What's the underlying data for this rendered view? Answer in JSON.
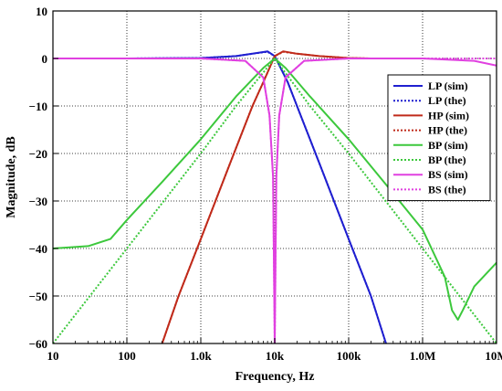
{
  "chart_data": {
    "type": "line",
    "xlabel": "Frequency, Hz",
    "ylabel": "Magnitude, dB",
    "x_scale": "log",
    "xlim": [
      10,
      10000000
    ],
    "ylim": [
      -60,
      10
    ],
    "x_ticks": [
      10,
      100,
      1000,
      10000,
      100000,
      1000000,
      10000000
    ],
    "x_tick_labels": [
      "10",
      "100",
      "1.0k",
      "10k",
      "100k",
      "1.0M",
      "10M"
    ],
    "y_ticks": [
      10,
      0,
      -10,
      -20,
      -30,
      -40,
      -50,
      -60
    ],
    "y_tick_labels": [
      "10",
      "0",
      "−10",
      "−20",
      "−30",
      "−40",
      "−50",
      "−60"
    ],
    "grid": true,
    "legend_position": "right",
    "series": [
      {
        "name": "LP (sim)",
        "color": "#1f1fd0",
        "style": "solid",
        "points": [
          [
            10,
            0
          ],
          [
            100,
            0
          ],
          [
            1000,
            0.1
          ],
          [
            3000,
            0.5
          ],
          [
            5000,
            1.0
          ],
          [
            8000,
            1.5
          ],
          [
            10000,
            0.5
          ],
          [
            15000,
            -5
          ],
          [
            20000,
            -10
          ],
          [
            40000,
            -22
          ],
          [
            100000,
            -38
          ],
          [
            200000,
            -50
          ],
          [
            320000,
            -60
          ]
        ]
      },
      {
        "name": "LP (the)",
        "color": "#1f1fd0",
        "style": "dotted",
        "points": [
          [
            10,
            0
          ],
          [
            100,
            0
          ],
          [
            1000,
            0.1
          ],
          [
            3000,
            0.5
          ],
          [
            5000,
            1.0
          ],
          [
            8000,
            1.4
          ],
          [
            10000,
            0.5
          ],
          [
            15000,
            -5
          ],
          [
            20000,
            -10
          ],
          [
            40000,
            -22
          ],
          [
            100000,
            -38
          ],
          [
            200000,
            -50
          ],
          [
            320000,
            -60
          ]
        ]
      },
      {
        "name": "HP (sim)",
        "color": "#c02a1a",
        "style": "solid",
        "points": [
          [
            300,
            -60
          ],
          [
            500,
            -50
          ],
          [
            1000,
            -38
          ],
          [
            2500,
            -22
          ],
          [
            5000,
            -10
          ],
          [
            7000,
            -5
          ],
          [
            10000,
            0.5
          ],
          [
            13000,
            1.5
          ],
          [
            20000,
            1.0
          ],
          [
            40000,
            0.5
          ],
          [
            100000,
            0.1
          ],
          [
            200000,
            0
          ]
        ]
      },
      {
        "name": "HP (the)",
        "color": "#c02a1a",
        "style": "dotted",
        "points": [
          [
            300,
            -60
          ],
          [
            500,
            -50
          ],
          [
            1000,
            -38
          ],
          [
            2500,
            -22
          ],
          [
            5000,
            -10
          ],
          [
            7000,
            -5
          ],
          [
            10000,
            0.5
          ],
          [
            13000,
            1.4
          ],
          [
            20000,
            1.0
          ],
          [
            40000,
            0.5
          ],
          [
            100000,
            0.1
          ],
          [
            200000,
            0
          ]
        ]
      },
      {
        "name": "BP (sim)",
        "color": "#3cc83c",
        "style": "solid",
        "points": [
          [
            10,
            -40
          ],
          [
            30,
            -39.5
          ],
          [
            60,
            -38
          ],
          [
            100,
            -34
          ],
          [
            300,
            -26
          ],
          [
            1000,
            -17
          ],
          [
            3000,
            -8
          ],
          [
            7000,
            -2
          ],
          [
            10000,
            0
          ],
          [
            14000,
            -2
          ],
          [
            30000,
            -8
          ],
          [
            100000,
            -17
          ],
          [
            300000,
            -26
          ],
          [
            1000000,
            -36
          ],
          [
            2000000,
            -46
          ],
          [
            2500000,
            -53
          ],
          [
            3000000,
            -55
          ],
          [
            3500000,
            -53
          ],
          [
            5000000,
            -48
          ],
          [
            10000000,
            -43
          ]
        ]
      },
      {
        "name": "BP (the)",
        "color": "#3cc83c",
        "style": "dotted",
        "points": [
          [
            10,
            -60
          ],
          [
            100,
            -40
          ],
          [
            1000,
            -20
          ],
          [
            3000,
            -10
          ],
          [
            10000,
            0
          ],
          [
            30000,
            -10
          ],
          [
            100000,
            -20
          ],
          [
            1000000,
            -40
          ],
          [
            10000000,
            -60
          ]
        ]
      },
      {
        "name": "BS (sim)",
        "color": "#e040e0",
        "style": "solid",
        "points": [
          [
            10,
            0
          ],
          [
            1000,
            0
          ],
          [
            4000,
            -0.5
          ],
          [
            7000,
            -4
          ],
          [
            8500,
            -12
          ],
          [
            9500,
            -25
          ],
          [
            10000,
            -60
          ],
          [
            10500,
            -25
          ],
          [
            11500,
            -12
          ],
          [
            14000,
            -4
          ],
          [
            25000,
            -0.5
          ],
          [
            100000,
            0
          ],
          [
            1000000,
            0
          ],
          [
            5000000,
            -0.5
          ],
          [
            10000000,
            -1.5
          ]
        ]
      },
      {
        "name": "BS (the)",
        "color": "#e040e0",
        "style": "dotted",
        "points": [
          [
            10,
            0
          ],
          [
            1000,
            0
          ],
          [
            4000,
            -0.5
          ],
          [
            7000,
            -4
          ],
          [
            8500,
            -12
          ],
          [
            9500,
            -25
          ],
          [
            10000,
            -60
          ],
          [
            10500,
            -25
          ],
          [
            11500,
            -12
          ],
          [
            14000,
            -4
          ],
          [
            25000,
            -0.5
          ],
          [
            100000,
            0
          ],
          [
            10000000,
            0
          ]
        ]
      }
    ]
  }
}
